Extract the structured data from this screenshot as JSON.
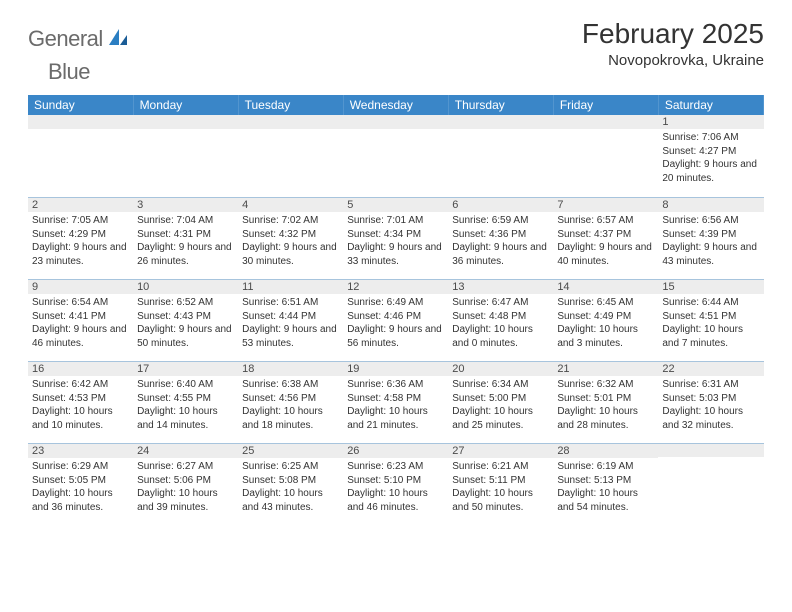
{
  "brand": {
    "word1": "General",
    "word2": "Blue"
  },
  "title": "February 2025",
  "location": "Novopokrovka, Ukraine",
  "colors": {
    "header_bg": "#3a86c8",
    "header_text": "#ffffff",
    "daynum_bg": "#ededed",
    "border": "#a7c4dd",
    "logo_gray": "#6b6b6b",
    "logo_blue": "#2b7ec2"
  },
  "day_headers": [
    "Sunday",
    "Monday",
    "Tuesday",
    "Wednesday",
    "Thursday",
    "Friday",
    "Saturday"
  ],
  "weeks": [
    [
      {
        "n": "",
        "sr": "",
        "ss": "",
        "dl": ""
      },
      {
        "n": "",
        "sr": "",
        "ss": "",
        "dl": ""
      },
      {
        "n": "",
        "sr": "",
        "ss": "",
        "dl": ""
      },
      {
        "n": "",
        "sr": "",
        "ss": "",
        "dl": ""
      },
      {
        "n": "",
        "sr": "",
        "ss": "",
        "dl": ""
      },
      {
        "n": "",
        "sr": "",
        "ss": "",
        "dl": ""
      },
      {
        "n": "1",
        "sr": "Sunrise: 7:06 AM",
        "ss": "Sunset: 4:27 PM",
        "dl": "Daylight: 9 hours and 20 minutes."
      }
    ],
    [
      {
        "n": "2",
        "sr": "Sunrise: 7:05 AM",
        "ss": "Sunset: 4:29 PM",
        "dl": "Daylight: 9 hours and 23 minutes."
      },
      {
        "n": "3",
        "sr": "Sunrise: 7:04 AM",
        "ss": "Sunset: 4:31 PM",
        "dl": "Daylight: 9 hours and 26 minutes."
      },
      {
        "n": "4",
        "sr": "Sunrise: 7:02 AM",
        "ss": "Sunset: 4:32 PM",
        "dl": "Daylight: 9 hours and 30 minutes."
      },
      {
        "n": "5",
        "sr": "Sunrise: 7:01 AM",
        "ss": "Sunset: 4:34 PM",
        "dl": "Daylight: 9 hours and 33 minutes."
      },
      {
        "n": "6",
        "sr": "Sunrise: 6:59 AM",
        "ss": "Sunset: 4:36 PM",
        "dl": "Daylight: 9 hours and 36 minutes."
      },
      {
        "n": "7",
        "sr": "Sunrise: 6:57 AM",
        "ss": "Sunset: 4:37 PM",
        "dl": "Daylight: 9 hours and 40 minutes."
      },
      {
        "n": "8",
        "sr": "Sunrise: 6:56 AM",
        "ss": "Sunset: 4:39 PM",
        "dl": "Daylight: 9 hours and 43 minutes."
      }
    ],
    [
      {
        "n": "9",
        "sr": "Sunrise: 6:54 AM",
        "ss": "Sunset: 4:41 PM",
        "dl": "Daylight: 9 hours and 46 minutes."
      },
      {
        "n": "10",
        "sr": "Sunrise: 6:52 AM",
        "ss": "Sunset: 4:43 PM",
        "dl": "Daylight: 9 hours and 50 minutes."
      },
      {
        "n": "11",
        "sr": "Sunrise: 6:51 AM",
        "ss": "Sunset: 4:44 PM",
        "dl": "Daylight: 9 hours and 53 minutes."
      },
      {
        "n": "12",
        "sr": "Sunrise: 6:49 AM",
        "ss": "Sunset: 4:46 PM",
        "dl": "Daylight: 9 hours and 56 minutes."
      },
      {
        "n": "13",
        "sr": "Sunrise: 6:47 AM",
        "ss": "Sunset: 4:48 PM",
        "dl": "Daylight: 10 hours and 0 minutes."
      },
      {
        "n": "14",
        "sr": "Sunrise: 6:45 AM",
        "ss": "Sunset: 4:49 PM",
        "dl": "Daylight: 10 hours and 3 minutes."
      },
      {
        "n": "15",
        "sr": "Sunrise: 6:44 AM",
        "ss": "Sunset: 4:51 PM",
        "dl": "Daylight: 10 hours and 7 minutes."
      }
    ],
    [
      {
        "n": "16",
        "sr": "Sunrise: 6:42 AM",
        "ss": "Sunset: 4:53 PM",
        "dl": "Daylight: 10 hours and 10 minutes."
      },
      {
        "n": "17",
        "sr": "Sunrise: 6:40 AM",
        "ss": "Sunset: 4:55 PM",
        "dl": "Daylight: 10 hours and 14 minutes."
      },
      {
        "n": "18",
        "sr": "Sunrise: 6:38 AM",
        "ss": "Sunset: 4:56 PM",
        "dl": "Daylight: 10 hours and 18 minutes."
      },
      {
        "n": "19",
        "sr": "Sunrise: 6:36 AM",
        "ss": "Sunset: 4:58 PM",
        "dl": "Daylight: 10 hours and 21 minutes."
      },
      {
        "n": "20",
        "sr": "Sunrise: 6:34 AM",
        "ss": "Sunset: 5:00 PM",
        "dl": "Daylight: 10 hours and 25 minutes."
      },
      {
        "n": "21",
        "sr": "Sunrise: 6:32 AM",
        "ss": "Sunset: 5:01 PM",
        "dl": "Daylight: 10 hours and 28 minutes."
      },
      {
        "n": "22",
        "sr": "Sunrise: 6:31 AM",
        "ss": "Sunset: 5:03 PM",
        "dl": "Daylight: 10 hours and 32 minutes."
      }
    ],
    [
      {
        "n": "23",
        "sr": "Sunrise: 6:29 AM",
        "ss": "Sunset: 5:05 PM",
        "dl": "Daylight: 10 hours and 36 minutes."
      },
      {
        "n": "24",
        "sr": "Sunrise: 6:27 AM",
        "ss": "Sunset: 5:06 PM",
        "dl": "Daylight: 10 hours and 39 minutes."
      },
      {
        "n": "25",
        "sr": "Sunrise: 6:25 AM",
        "ss": "Sunset: 5:08 PM",
        "dl": "Daylight: 10 hours and 43 minutes."
      },
      {
        "n": "26",
        "sr": "Sunrise: 6:23 AM",
        "ss": "Sunset: 5:10 PM",
        "dl": "Daylight: 10 hours and 46 minutes."
      },
      {
        "n": "27",
        "sr": "Sunrise: 6:21 AM",
        "ss": "Sunset: 5:11 PM",
        "dl": "Daylight: 10 hours and 50 minutes."
      },
      {
        "n": "28",
        "sr": "Sunrise: 6:19 AM",
        "ss": "Sunset: 5:13 PM",
        "dl": "Daylight: 10 hours and 54 minutes."
      },
      {
        "n": "",
        "sr": "",
        "ss": "",
        "dl": ""
      }
    ]
  ]
}
